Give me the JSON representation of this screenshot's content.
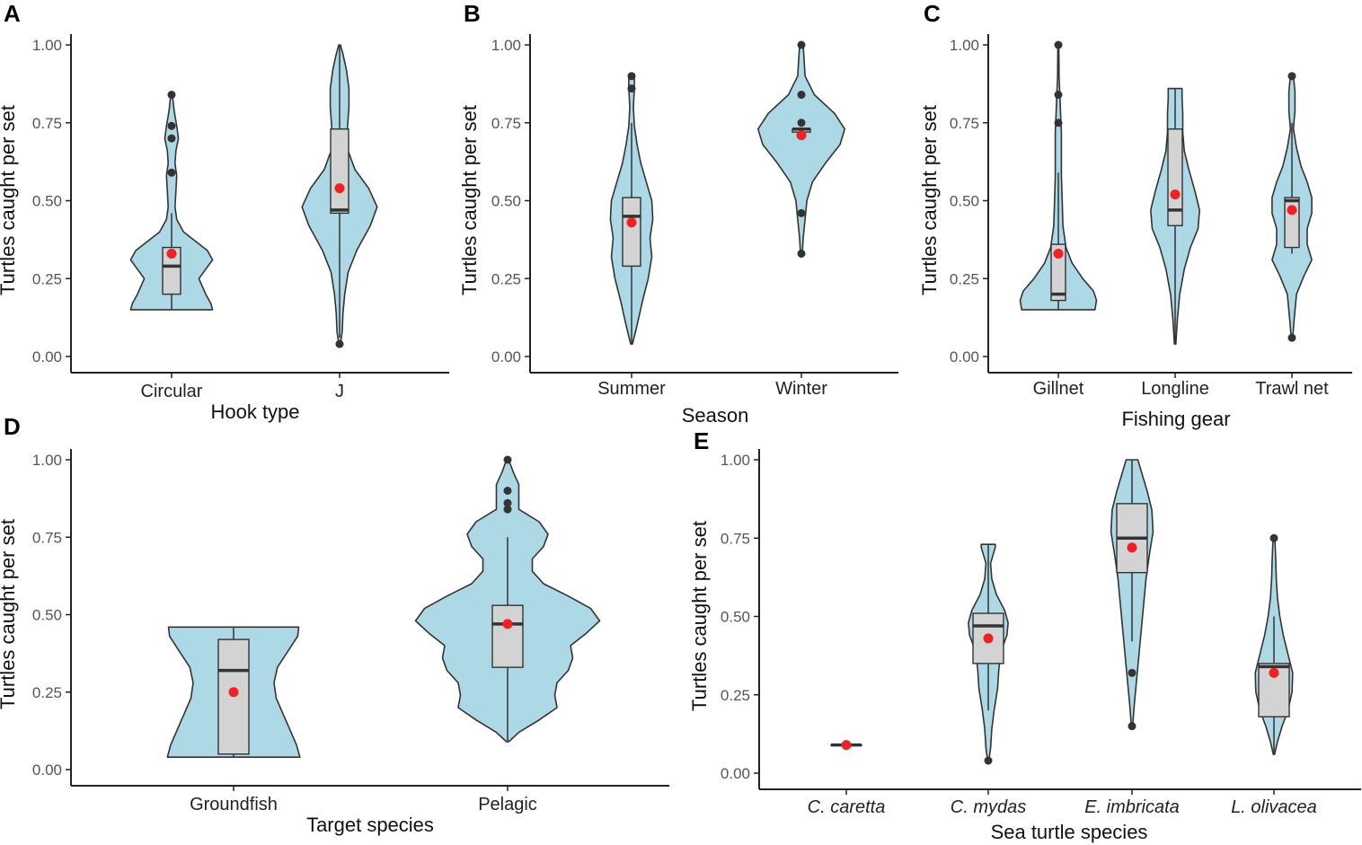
{
  "figure": {
    "violin_fill": "#add8e6",
    "violin_stroke": "#333333",
    "box_fill": "#d3d3d3",
    "box_stroke": "#333333",
    "outlier_color": "#333333",
    "mean_color": "#ee2222",
    "axis_color": "#222222"
  },
  "chart_data": [
    {
      "panel": "A",
      "type": "violin",
      "xlabel": "Hook type",
      "ylabel": "Turtles caught per set",
      "ylim": [
        0,
        1
      ],
      "yticks": [
        "0.00",
        "0.25",
        "0.50",
        "0.75",
        "1.00"
      ],
      "categories": [
        "Circular",
        "J"
      ],
      "groups": [
        {
          "name": "Circular",
          "violin": [
            [
              0.15,
              0.24
            ],
            [
              0.17,
              0.23
            ],
            [
              0.2,
              0.2
            ],
            [
              0.25,
              0.16
            ],
            [
              0.28,
              0.2
            ],
            [
              0.31,
              0.24
            ],
            [
              0.34,
              0.21
            ],
            [
              0.37,
              0.14
            ],
            [
              0.4,
              0.07
            ],
            [
              0.44,
              0.03
            ],
            [
              0.48,
              0.02
            ],
            [
              0.53,
              0.025
            ],
            [
              0.58,
              0.03
            ],
            [
              0.62,
              0.02
            ],
            [
              0.66,
              0.025
            ],
            [
              0.7,
              0.04
            ],
            [
              0.74,
              0.03
            ],
            [
              0.79,
              0.015
            ],
            [
              0.84,
              0.005
            ]
          ],
          "box": {
            "q1": 0.2,
            "median": 0.29,
            "q3": 0.35,
            "wmin": 0.15,
            "wmax": 0.46
          },
          "outliers": [
            0.59,
            0.7,
            0.74,
            0.84
          ],
          "mean": 0.33
        },
        {
          "name": "J",
          "violin": [
            [
              0.04,
              0.005
            ],
            [
              0.08,
              0.015
            ],
            [
              0.14,
              0.02
            ],
            [
              0.2,
              0.03
            ],
            [
              0.27,
              0.05
            ],
            [
              0.34,
              0.1
            ],
            [
              0.42,
              0.18
            ],
            [
              0.48,
              0.22
            ],
            [
              0.54,
              0.17
            ],
            [
              0.6,
              0.09
            ],
            [
              0.66,
              0.05
            ],
            [
              0.73,
              0.045
            ],
            [
              0.8,
              0.055
            ],
            [
              0.86,
              0.055
            ],
            [
              0.92,
              0.04
            ],
            [
              0.97,
              0.02
            ],
            [
              1.0,
              0.005
            ]
          ],
          "box": {
            "q1": 0.46,
            "median": 0.47,
            "q3": 0.73,
            "wmin": 0.06,
            "wmax": 1.0
          },
          "outliers": [
            0.04
          ],
          "mean": 0.54
        }
      ]
    },
    {
      "panel": "B",
      "type": "violin",
      "xlabel": "Season",
      "ylabel": "Turtles caught per set",
      "ylim": [
        0,
        1
      ],
      "yticks": [
        "0.00",
        "0.25",
        "0.50",
        "0.75",
        "1.00"
      ],
      "categories": [
        "Summer",
        "Winter"
      ],
      "groups": [
        {
          "name": "Summer",
          "violin": [
            [
              0.04,
              0.005
            ],
            [
              0.1,
              0.03
            ],
            [
              0.18,
              0.06
            ],
            [
              0.25,
              0.09
            ],
            [
              0.32,
              0.11
            ],
            [
              0.38,
              0.1
            ],
            [
              0.44,
              0.115
            ],
            [
              0.5,
              0.11
            ],
            [
              0.56,
              0.08
            ],
            [
              0.62,
              0.05
            ],
            [
              0.68,
              0.03
            ],
            [
              0.74,
              0.015
            ],
            [
              0.8,
              0.01
            ],
            [
              0.86,
              0.015
            ],
            [
              0.9,
              0.015
            ]
          ],
          "box": {
            "q1": 0.29,
            "median": 0.45,
            "q3": 0.51,
            "wmin": 0.04,
            "wmax": 0.75
          },
          "outliers": [
            0.86,
            0.9
          ],
          "mean": 0.43
        },
        {
          "name": "Winter",
          "violin": [
            [
              0.33,
              0.005
            ],
            [
              0.38,
              0.01
            ],
            [
              0.44,
              0.02
            ],
            [
              0.5,
              0.03
            ],
            [
              0.56,
              0.06
            ],
            [
              0.62,
              0.13
            ],
            [
              0.68,
              0.21
            ],
            [
              0.73,
              0.235
            ],
            [
              0.78,
              0.18
            ],
            [
              0.84,
              0.07
            ],
            [
              0.9,
              0.02
            ],
            [
              0.95,
              0.015
            ],
            [
              1.0,
              0.01
            ]
          ],
          "box": {
            "q1": 0.72,
            "median": 0.73,
            "q3": 0.73,
            "wmin": 0.72,
            "wmax": 0.73
          },
          "outliers": [
            0.33,
            0.46,
            0.75,
            0.84,
            1.0
          ],
          "mean": 0.71
        }
      ]
    },
    {
      "panel": "C",
      "type": "violin",
      "xlabel": "Fishing gear",
      "ylabel": "Turtles caught per set",
      "ylim": [
        0,
        1
      ],
      "yticks": [
        "0.00",
        "0.25",
        "0.50",
        "0.75",
        "1.00"
      ],
      "categories": [
        "Gillnet",
        "Longline",
        "Trawl net"
      ],
      "groups": [
        {
          "name": "Gillnet",
          "violin": [
            [
              0.15,
              0.24
            ],
            [
              0.18,
              0.25
            ],
            [
              0.21,
              0.23
            ],
            [
              0.25,
              0.16
            ],
            [
              0.3,
              0.09
            ],
            [
              0.35,
              0.05
            ],
            [
              0.42,
              0.03
            ],
            [
              0.5,
              0.025
            ],
            [
              0.58,
              0.02
            ],
            [
              0.66,
              0.02
            ],
            [
              0.72,
              0.02
            ],
            [
              0.78,
              0.015
            ],
            [
              0.84,
              0.01
            ],
            [
              0.9,
              0.005
            ],
            [
              0.95,
              0.004
            ],
            [
              1.0,
              0.003
            ]
          ],
          "box": {
            "q1": 0.18,
            "median": 0.2,
            "q3": 0.36,
            "wmin": 0.15,
            "wmax": 0.59
          },
          "outliers": [
            0.75,
            0.84,
            1.0
          ],
          "mean": 0.33
        },
        {
          "name": "Longline",
          "violin": [
            [
              0.04,
              0.005
            ],
            [
              0.12,
              0.015
            ],
            [
              0.2,
              0.03
            ],
            [
              0.28,
              0.06
            ],
            [
              0.35,
              0.1
            ],
            [
              0.41,
              0.15
            ],
            [
              0.47,
              0.16
            ],
            [
              0.53,
              0.13
            ],
            [
              0.6,
              0.09
            ],
            [
              0.66,
              0.06
            ],
            [
              0.72,
              0.05
            ],
            [
              0.78,
              0.05
            ],
            [
              0.83,
              0.045
            ],
            [
              0.86,
              0.045
            ]
          ],
          "box": {
            "q1": 0.42,
            "median": 0.47,
            "q3": 0.73,
            "wmin": 0.04,
            "wmax": 0.86
          },
          "outliers": [],
          "mean": 0.52
        },
        {
          "name": "Trawl net",
          "violin": [
            [
              0.06,
              0.005
            ],
            [
              0.12,
              0.015
            ],
            [
              0.2,
              0.03
            ],
            [
              0.26,
              0.08
            ],
            [
              0.31,
              0.13
            ],
            [
              0.36,
              0.1
            ],
            [
              0.41,
              0.1
            ],
            [
              0.46,
              0.13
            ],
            [
              0.51,
              0.13
            ],
            [
              0.56,
              0.1
            ],
            [
              0.61,
              0.06
            ],
            [
              0.67,
              0.03
            ],
            [
              0.73,
              0.01
            ],
            [
              0.79,
              0.02
            ],
            [
              0.85,
              0.02
            ],
            [
              0.9,
              0.01
            ]
          ],
          "box": {
            "q1": 0.35,
            "median": 0.5,
            "q3": 0.51,
            "wmin": 0.33,
            "wmax": 0.75
          },
          "outliers": [
            0.06,
            0.9
          ],
          "mean": 0.47
        }
      ]
    },
    {
      "panel": "D",
      "type": "violin",
      "xlabel": "Target species",
      "ylabel": "Turtles caught per set",
      "ylim": [
        0,
        1
      ],
      "yticks": [
        "0.00",
        "0.25",
        "0.50",
        "0.75",
        "1.00"
      ],
      "categories": [
        "Groundfish",
        "Pelagic"
      ],
      "groups": [
        {
          "name": "Groundfish",
          "violin": [
            [
              0.04,
              0.295
            ],
            [
              0.08,
              0.28
            ],
            [
              0.13,
              0.25
            ],
            [
              0.18,
              0.22
            ],
            [
              0.23,
              0.19
            ],
            [
              0.28,
              0.18
            ],
            [
              0.33,
              0.195
            ],
            [
              0.38,
              0.24
            ],
            [
              0.43,
              0.285
            ],
            [
              0.46,
              0.29
            ]
          ],
          "box": {
            "q1": 0.05,
            "median": 0.32,
            "q3": 0.42,
            "wmin": 0.04,
            "wmax": 0.46
          },
          "outliers": [],
          "mean": 0.25
        },
        {
          "name": "Pelagic",
          "violin": [
            [
              0.09,
              0.005
            ],
            [
              0.12,
              0.05
            ],
            [
              0.16,
              0.14
            ],
            [
              0.2,
              0.22
            ],
            [
              0.24,
              0.21
            ],
            [
              0.28,
              0.22
            ],
            [
              0.32,
              0.27
            ],
            [
              0.36,
              0.29
            ],
            [
              0.4,
              0.28
            ],
            [
              0.44,
              0.35
            ],
            [
              0.48,
              0.41
            ],
            [
              0.52,
              0.37
            ],
            [
              0.56,
              0.27
            ],
            [
              0.6,
              0.16
            ],
            [
              0.64,
              0.11
            ],
            [
              0.68,
              0.11
            ],
            [
              0.72,
              0.16
            ],
            [
              0.76,
              0.18
            ],
            [
              0.8,
              0.14
            ],
            [
              0.84,
              0.05
            ],
            [
              0.88,
              0.05
            ],
            [
              0.92,
              0.05
            ],
            [
              0.96,
              0.025
            ],
            [
              1.0,
              0.005
            ]
          ],
          "box": {
            "q1": 0.33,
            "median": 0.47,
            "q3": 0.53,
            "wmin": 0.09,
            "wmax": 0.75
          },
          "outliers": [
            0.84,
            0.86,
            0.9,
            1.0
          ],
          "mean": 0.47
        }
      ]
    },
    {
      "panel": "E",
      "type": "violin",
      "xlabel": "Sea turtle species",
      "ylabel": "Turtles caught per set",
      "ylim": [
        0,
        1
      ],
      "yticks": [
        "0.00",
        "0.25",
        "0.50",
        "0.75",
        "1.00"
      ],
      "categories": [
        "C. caretta",
        "C. mydas",
        "E. imbricata",
        "L. olivacea"
      ],
      "italic_categories": true,
      "groups": [
        {
          "name": "C. caretta",
          "violin": [
            [
              0.085,
              0.02
            ],
            [
              0.09,
              0.03
            ],
            [
              0.095,
              0.02
            ]
          ],
          "box": {
            "q1": 0.09,
            "median": 0.09,
            "q3": 0.09,
            "wmin": 0.09,
            "wmax": 0.09
          },
          "outliers": [],
          "mean": 0.09
        },
        {
          "name": "C. mydas",
          "violin": [
            [
              0.04,
              0.005
            ],
            [
              0.08,
              0.02
            ],
            [
              0.14,
              0.03
            ],
            [
              0.2,
              0.05
            ],
            [
              0.27,
              0.08
            ],
            [
              0.33,
              0.09
            ],
            [
              0.39,
              0.11
            ],
            [
              0.44,
              0.16
            ],
            [
              0.48,
              0.17
            ],
            [
              0.52,
              0.14
            ],
            [
              0.57,
              0.07
            ],
            [
              0.62,
              0.03
            ],
            [
              0.67,
              0.02
            ],
            [
              0.72,
              0.06
            ],
            [
              0.73,
              0.06
            ]
          ],
          "box": {
            "q1": 0.35,
            "median": 0.47,
            "q3": 0.51,
            "wmin": 0.2,
            "wmax": 0.73
          },
          "outliers": [
            0.04
          ],
          "mean": 0.43
        },
        {
          "name": "E. imbricata",
          "violin": [
            [
              0.15,
              0.005
            ],
            [
              0.22,
              0.02
            ],
            [
              0.3,
              0.04
            ],
            [
              0.38,
              0.06
            ],
            [
              0.46,
              0.08
            ],
            [
              0.54,
              0.1
            ],
            [
              0.62,
              0.12
            ],
            [
              0.7,
              0.15
            ],
            [
              0.77,
              0.18
            ],
            [
              0.84,
              0.17
            ],
            [
              0.9,
              0.13
            ],
            [
              0.95,
              0.09
            ],
            [
              1.0,
              0.05
            ]
          ],
          "box": {
            "q1": 0.64,
            "median": 0.75,
            "q3": 0.86,
            "wmin": 0.42,
            "wmax": 1.0
          },
          "outliers": [
            0.15,
            0.32
          ],
          "mean": 0.72
        },
        {
          "name": "L. olivacea",
          "violin": [
            [
              0.06,
              0.005
            ],
            [
              0.1,
              0.03
            ],
            [
              0.15,
              0.07
            ],
            [
              0.2,
              0.12
            ],
            [
              0.26,
              0.155
            ],
            [
              0.32,
              0.16
            ],
            [
              0.38,
              0.12
            ],
            [
              0.44,
              0.08
            ],
            [
              0.5,
              0.05
            ],
            [
              0.56,
              0.03
            ],
            [
              0.62,
              0.02
            ],
            [
              0.68,
              0.015
            ],
            [
              0.73,
              0.01
            ],
            [
              0.75,
              0.005
            ]
          ],
          "box": {
            "q1": 0.18,
            "median": 0.34,
            "q3": 0.35,
            "wmin": 0.06,
            "wmax": 0.5
          },
          "outliers": [
            0.75
          ],
          "mean": 0.32
        }
      ]
    }
  ]
}
